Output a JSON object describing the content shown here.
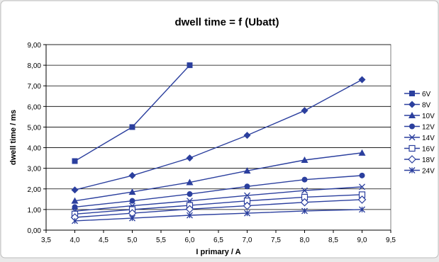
{
  "chart_data": {
    "type": "line",
    "title": "dwell time = f (Ubatt)",
    "xlabel": "I primary / A",
    "ylabel": "dwell time / ms",
    "xlim": [
      3.5,
      9.5
    ],
    "ylim": [
      0,
      9
    ],
    "x_ticks": [
      "3,5",
      "4,0",
      "4,5",
      "5,0",
      "5,5",
      "6,0",
      "6,5",
      "7,0",
      "7,5",
      "8,0",
      "8,5",
      "9,0",
      "9,5"
    ],
    "y_ticks": [
      "0,00",
      "1,00",
      "2,00",
      "3,00",
      "4,00",
      "5,00",
      "6,00",
      "7,00",
      "8,00",
      "9,00"
    ],
    "grid": "horizontal",
    "legend": "right",
    "line_color": "#2b3f9e",
    "series": [
      {
        "name": "6V",
        "marker": "square",
        "x": [
          4,
          5,
          6
        ],
        "values": [
          3.35,
          5.0,
          8.0
        ]
      },
      {
        "name": "8V",
        "marker": "diamond",
        "x": [
          4,
          5,
          6,
          7,
          8,
          9
        ],
        "values": [
          1.95,
          2.65,
          3.5,
          4.6,
          5.8,
          7.3
        ]
      },
      {
        "name": "10V",
        "marker": "triangle",
        "x": [
          4,
          5,
          6,
          7,
          8,
          9
        ],
        "values": [
          1.42,
          1.85,
          2.32,
          2.88,
          3.4,
          3.75
        ]
      },
      {
        "name": "12V",
        "marker": "circle",
        "x": [
          4,
          5,
          6,
          7,
          8,
          9
        ],
        "values": [
          1.12,
          1.42,
          1.75,
          2.12,
          2.45,
          2.65
        ]
      },
      {
        "name": "14V",
        "marker": "x",
        "x": [
          4,
          5,
          6,
          7,
          8,
          9
        ],
        "values": [
          0.92,
          1.18,
          1.42,
          1.68,
          1.92,
          2.1
        ]
      },
      {
        "name": "16V",
        "marker": "square-open",
        "x": [
          4,
          5,
          6,
          7,
          8,
          9
        ],
        "values": [
          0.78,
          1.0,
          1.2,
          1.42,
          1.6,
          1.72
        ]
      },
      {
        "name": "18V",
        "marker": "diamond-open",
        "x": [
          4,
          5,
          6,
          7,
          8,
          9
        ],
        "values": [
          0.62,
          0.82,
          1.02,
          1.18,
          1.35,
          1.48
        ]
      },
      {
        "name": "24V",
        "marker": "asterisk",
        "x": [
          4,
          5,
          6,
          7,
          8,
          9
        ],
        "values": [
          0.45,
          0.58,
          0.72,
          0.82,
          0.93,
          1.0
        ]
      }
    ]
  }
}
